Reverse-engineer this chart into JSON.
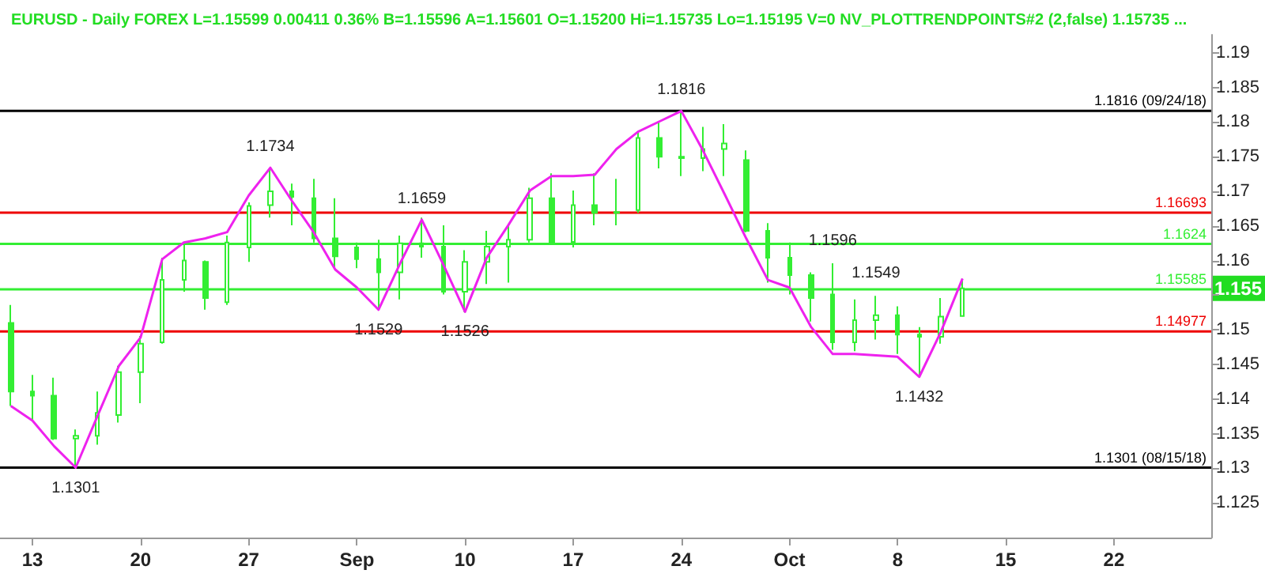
{
  "chart_data": {
    "type": "candlestick",
    "title": "EURUSD - Daily FOREX L=1.15599 0.00411 0.36% B=1.15596 A=1.15601 O=1.15200 Hi=1.15735 Lo=1.15195 V=0 NV_PLOTTRENDPOINTS#2 (2,false) 1.15735 ...",
    "categories": [
      null,
      "13",
      null,
      null,
      null,
      null,
      "20",
      null,
      null,
      null,
      null,
      "27",
      null,
      null,
      null,
      null,
      "Sep",
      null,
      null,
      null,
      null,
      "10",
      null,
      null,
      null,
      null,
      "17",
      null,
      null,
      null,
      null,
      "24",
      null,
      null,
      null,
      null,
      "Oct",
      null,
      null,
      null,
      null,
      "8",
      null,
      null,
      null,
      null,
      "15",
      null,
      null,
      null,
      null,
      "22",
      null,
      null,
      null,
      null
    ],
    "series": [
      {
        "color": "#33ee33",
        "ohlc": [
          [
            1.151,
            1.1536,
            1.139,
            1.1411
          ],
          [
            1.1411,
            1.1435,
            1.1369,
            1.1405
          ],
          [
            1.1405,
            1.1431,
            1.1341,
            1.1343
          ],
          [
            1.1343,
            1.1356,
            1.1301,
            1.1347
          ],
          [
            1.1347,
            1.1411,
            1.1334,
            1.138
          ],
          [
            1.1377,
            1.1448,
            1.1366,
            1.1439
          ],
          [
            1.1439,
            1.1491,
            1.1394,
            1.148
          ],
          [
            1.1482,
            1.1604,
            1.148,
            1.1572
          ],
          [
            1.1572,
            1.1626,
            1.1555,
            1.16
          ],
          [
            1.1598,
            1.16,
            1.1529,
            1.1546
          ],
          [
            1.154,
            1.1636,
            1.1536,
            1.1626
          ],
          [
            1.1619,
            1.1684,
            1.1598,
            1.1679
          ],
          [
            1.168,
            1.1733,
            1.1662,
            1.17
          ],
          [
            1.17,
            1.1711,
            1.1651,
            1.1692
          ],
          [
            1.169,
            1.1718,
            1.1626,
            1.1632
          ],
          [
            1.1632,
            1.169,
            1.1589,
            1.1606
          ],
          [
            1.1619,
            1.1626,
            1.1589,
            1.1602
          ],
          [
            1.1602,
            1.163,
            1.1529,
            1.1583
          ],
          [
            1.1583,
            1.1636,
            1.1544,
            1.1625
          ],
          [
            1.1625,
            1.1662,
            1.1604,
            1.162
          ],
          [
            1.162,
            1.1651,
            1.1551,
            1.1555
          ],
          [
            1.1555,
            1.1615,
            1.1526,
            1.1598
          ],
          [
            1.1598,
            1.1643,
            1.1566,
            1.162
          ],
          [
            1.162,
            1.1651,
            1.1568,
            1.163
          ],
          [
            1.163,
            1.1705,
            1.1626,
            1.169
          ],
          [
            1.169,
            1.1726,
            1.1626,
            1.1627
          ],
          [
            1.1627,
            1.1701,
            1.1619,
            1.168
          ],
          [
            1.168,
            1.1726,
            1.1651,
            1.1669
          ],
          [
            1.1669,
            1.1718,
            1.1651,
            1.167
          ],
          [
            1.1673,
            1.1786,
            1.1669,
            1.1777
          ],
          [
            1.1777,
            1.1801,
            1.1733,
            1.175
          ],
          [
            1.175,
            1.1816,
            1.1722,
            1.1748
          ],
          [
            1.1748,
            1.1793,
            1.1729,
            1.1761
          ],
          [
            1.1761,
            1.1797,
            1.1722,
            1.1769
          ],
          [
            1.1745,
            1.1759,
            1.1641,
            1.1643
          ],
          [
            1.1643,
            1.1654,
            1.1568,
            1.1604
          ],
          [
            1.1604,
            1.1626,
            1.1551,
            1.1579
          ],
          [
            1.1579,
            1.1583,
            1.1512,
            1.1546
          ],
          [
            1.1551,
            1.1596,
            1.1471,
            1.1482
          ],
          [
            1.1482,
            1.1544,
            1.1469,
            1.1514
          ],
          [
            1.1514,
            1.1549,
            1.1486,
            1.1521
          ],
          [
            1.1521,
            1.1534,
            1.1465,
            1.1493
          ],
          [
            1.1493,
            1.1504,
            1.1432,
            1.149
          ],
          [
            1.149,
            1.1546,
            1.148,
            1.1519
          ],
          [
            1.152,
            1.15735,
            1.15195,
            1.15599
          ],
          null,
          null,
          null,
          null,
          null,
          null,
          null,
          null,
          null,
          null,
          null
        ],
        "value_labels": [
          null,
          null,
          null,
          null,
          null,
          null,
          null,
          null,
          null,
          null,
          null,
          null,
          null,
          null,
          null,
          null,
          null,
          null,
          null,
          null,
          null,
          null,
          null,
          null,
          null,
          null,
          null,
          null,
          null,
          null,
          null,
          null,
          null,
          null,
          null,
          null,
          null,
          null,
          "1.1596",
          null,
          "1.1549",
          null,
          null,
          null,
          null,
          null,
          null,
          null,
          null,
          null,
          null,
          null,
          null,
          null,
          null,
          null
        ]
      },
      {
        "type": "line",
        "color": "#ee22ee",
        "values": [
          1.139,
          1.1369,
          1.1332,
          1.1301,
          1.1375,
          1.1448,
          1.1489,
          1.1602,
          1.1626,
          1.1632,
          1.1641,
          1.1694,
          1.1734,
          1.1686,
          1.1641,
          1.1587,
          1.1561,
          1.1529,
          1.1596,
          1.1659,
          1.1594,
          1.1526,
          1.1604,
          1.1651,
          1.1701,
          1.1722,
          1.1722,
          1.1724,
          1.1761,
          1.1786,
          1.1801,
          1.1816,
          1.1759,
          1.1696,
          1.1632,
          1.1572,
          1.1561,
          1.1504,
          1.1465,
          1.1465,
          1.1463,
          1.1461,
          1.1432,
          1.1497,
          1.1574,
          null,
          null,
          null,
          null,
          null,
          null,
          null,
          null,
          null,
          null,
          null
        ],
        "value_labels": [
          null,
          null,
          null,
          "1.1301",
          null,
          null,
          null,
          null,
          null,
          null,
          null,
          null,
          "1.1734",
          null,
          null,
          null,
          null,
          "1.1529",
          null,
          "1.1659",
          null,
          "1.1526",
          null,
          null,
          null,
          null,
          null,
          null,
          null,
          null,
          null,
          "1.1816",
          null,
          null,
          null,
          null,
          null,
          null,
          null,
          null,
          null,
          null,
          "1.1432",
          null,
          null,
          null,
          null,
          null,
          null,
          null,
          null,
          null,
          null,
          null,
          null,
          null
        ]
      }
    ],
    "ylim": [
      1.12,
      1.1926
    ],
    "yticks": [
      1.125,
      1.13,
      1.135,
      1.14,
      1.145,
      1.15,
      {
        "value": 1.155,
        "label": null
      },
      1.16,
      1.165,
      1.17,
      1.175,
      1.18,
      1.185,
      1.19
    ],
    "ref_lines": [
      {
        "axis": "y",
        "value": 1.1816,
        "label": "1.1816 (09/24/18)",
        "color": "#000000"
      },
      {
        "axis": "y",
        "value": 1.16693,
        "label": "1.16693",
        "color": "#ee0000"
      },
      {
        "axis": "y",
        "value": 1.1624,
        "label": "1.1624",
        "color": "#33ee33"
      },
      {
        "axis": "y",
        "value": 1.15585,
        "label": "1.15585",
        "color": "#33ee33"
      },
      {
        "axis": "y",
        "value": 1.14977,
        "label": "1.14977",
        "color": "#ee0000"
      },
      {
        "axis": "y",
        "value": 1.1301,
        "label": "1.1301 (08/15/18)",
        "color": "#000000"
      }
    ],
    "annotations": [
      {
        "text": "1.155",
        "y": 1.15599
      }
    ],
    "marker": "none",
    "grid": false
  }
}
